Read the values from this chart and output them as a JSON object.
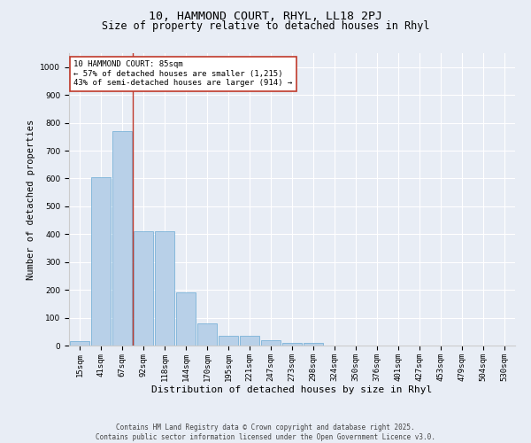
{
  "title_line1": "10, HAMMOND COURT, RHYL, LL18 2PJ",
  "title_line2": "Size of property relative to detached houses in Rhyl",
  "xlabel": "Distribution of detached houses by size in Rhyl",
  "ylabel": "Number of detached properties",
  "categories": [
    "15sqm",
    "41sqm",
    "67sqm",
    "92sqm",
    "118sqm",
    "144sqm",
    "170sqm",
    "195sqm",
    "221sqm",
    "247sqm",
    "273sqm",
    "298sqm",
    "324sqm",
    "350sqm",
    "376sqm",
    "401sqm",
    "427sqm",
    "453sqm",
    "479sqm",
    "504sqm",
    "530sqm"
  ],
  "values": [
    15,
    605,
    770,
    410,
    410,
    190,
    80,
    35,
    35,
    18,
    10,
    10,
    0,
    0,
    0,
    0,
    0,
    0,
    0,
    0,
    0
  ],
  "bar_color": "#b8d0e8",
  "bar_edge_color": "#6aaad4",
  "vline_color": "#c0392b",
  "vline_x": 2.5,
  "annotation_text": "10 HAMMOND COURT: 85sqm\n← 57% of detached houses are smaller (1,215)\n43% of semi-detached houses are larger (914) →",
  "annotation_box_color": "#ffffff",
  "annotation_box_edge_color": "#c0392b",
  "ylim": [
    0,
    1050
  ],
  "yticks": [
    0,
    100,
    200,
    300,
    400,
    500,
    600,
    700,
    800,
    900,
    1000
  ],
  "background_color": "#e8edf5",
  "grid_color": "#ffffff",
  "footer_line1": "Contains HM Land Registry data © Crown copyright and database right 2025.",
  "footer_line2": "Contains public sector information licensed under the Open Government Licence v3.0.",
  "title_fontsize": 9.5,
  "subtitle_fontsize": 8.5,
  "ylabel_fontsize": 7.5,
  "xlabel_fontsize": 8,
  "tick_fontsize": 6.5,
  "annotation_fontsize": 6.5,
  "footer_fontsize": 5.5
}
